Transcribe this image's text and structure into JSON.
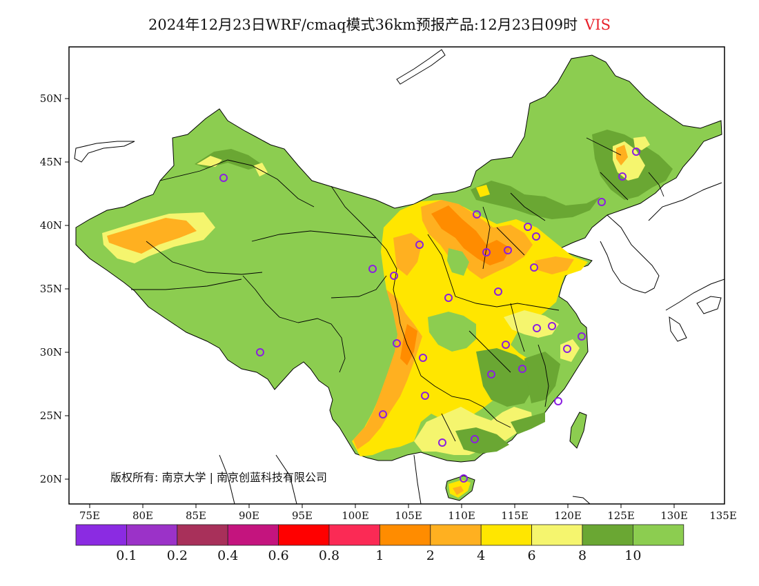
{
  "title": {
    "text": "2024年12月23日WRF/cmaq模式36km预报产品:12月23日09时",
    "variable": "VIS"
  },
  "axes": {
    "lat_labels": [
      "50N",
      "45N",
      "40N",
      "35N",
      "30N",
      "25N",
      "20N"
    ],
    "lon_labels": [
      "75E",
      "80E",
      "85E",
      "90E",
      "95E",
      "100E",
      "105E",
      "110E",
      "115E",
      "120E",
      "125E",
      "130E",
      "135E"
    ]
  },
  "copyright": "版权所有: 南京大学 | 南京创蓝科技有限公司",
  "legend": {
    "colors": [
      "#8b2be2",
      "#9b32c8",
      "#a8305a",
      "#c4147e",
      "#ff0000",
      "#fb2a55",
      "#ff8c00",
      "#ffb020",
      "#ffe600",
      "#f5f56e",
      "#6aa733",
      "#8ccd50"
    ],
    "labels": [
      "0.1",
      "0.2",
      "0.4",
      "0.6",
      "0.8",
      "1",
      "2",
      "4",
      "6",
      "8",
      "10"
    ]
  },
  "colors": {
    "land_default": "#8ccd50",
    "station_marker": "#8a1ee0"
  }
}
